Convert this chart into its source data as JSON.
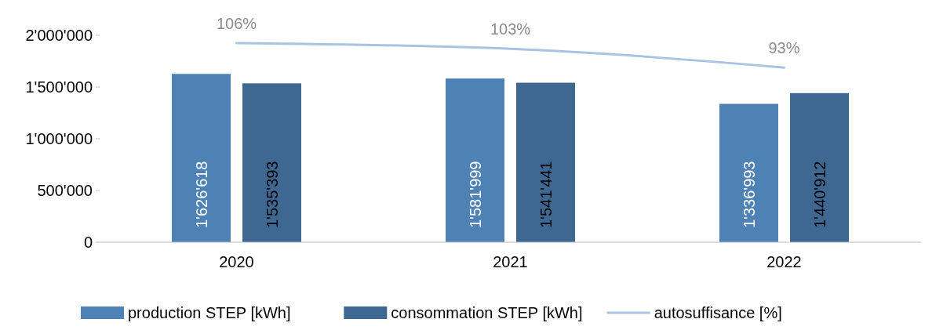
{
  "chart_data": {
    "type": "bar",
    "categories": [
      "2020",
      "2021",
      "2022"
    ],
    "series": [
      {
        "name": "production STEP [kWh]",
        "color": "#4e81b4",
        "values": [
          1626618,
          1581999,
          1336993
        ],
        "value_labels": [
          "1'626'618",
          "1'581'999",
          "1'336'993"
        ]
      },
      {
        "name": "consommation STEP [kWh]",
        "color": "#3e6891",
        "values": [
          1535393,
          1541441,
          1440912
        ],
        "value_labels": [
          "1'535'393",
          "1'541'441",
          "1'440'912"
        ]
      },
      {
        "name": "autosuffisance [%]",
        "type": "line",
        "axis": "y2",
        "color": "#a9c3e3",
        "values": [
          106,
          103,
          93
        ],
        "value_labels": [
          "106%",
          "103%",
          "93%"
        ]
      }
    ],
    "ylim": [
      0,
      2000000
    ],
    "yticks": [
      {
        "value": 0,
        "label": "0"
      },
      {
        "value": 500000,
        "label": "500'000"
      },
      {
        "value": 1000000,
        "label": "1'000'000"
      },
      {
        "value": 1500000,
        "label": "1'500'000"
      },
      {
        "value": 2000000,
        "label": "2'000'000"
      }
    ],
    "tick_labels": "y",
    "legend": "bottom",
    "grid": false
  }
}
